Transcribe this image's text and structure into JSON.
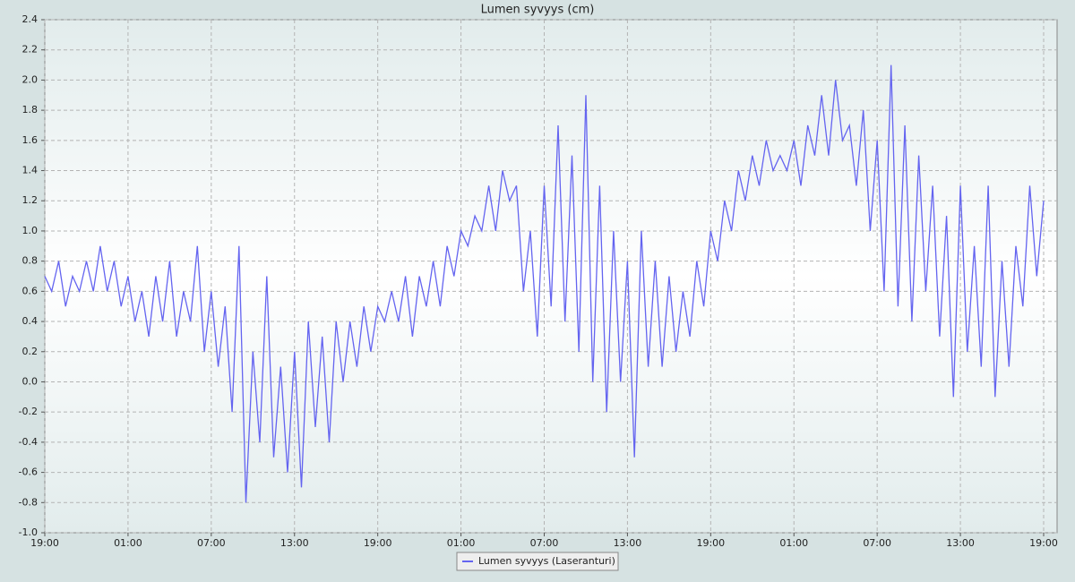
{
  "chart_data": {
    "type": "line",
    "title": "Lumen syvyys (cm)",
    "categories": [
      "19:00",
      null,
      null,
      null,
      null,
      null,
      null,
      null,
      null,
      null,
      null,
      null,
      "01:00",
      null,
      null,
      null,
      null,
      null,
      null,
      null,
      null,
      null,
      null,
      null,
      "07:00",
      null,
      null,
      null,
      null,
      null,
      null,
      null,
      null,
      null,
      null,
      null,
      "13:00",
      null,
      null,
      null,
      null,
      null,
      null,
      null,
      null,
      null,
      null,
      null,
      "19:00",
      null,
      null,
      null,
      null,
      null,
      null,
      null,
      null,
      null,
      null,
      null,
      "01:00",
      null,
      null,
      null,
      null,
      null,
      null,
      null,
      null,
      null,
      null,
      null,
      "07:00",
      null,
      null,
      null,
      null,
      null,
      null,
      null,
      null,
      null,
      null,
      null,
      "13:00",
      null,
      null,
      null,
      null,
      null,
      null,
      null,
      null,
      null,
      null,
      null,
      "19:00",
      null,
      null,
      null,
      null,
      null,
      null,
      null,
      null,
      null,
      null,
      null,
      "01:00",
      null,
      null,
      null,
      null,
      null,
      null,
      null,
      null,
      null,
      null,
      null,
      "07:00",
      null,
      null,
      null,
      null,
      null,
      null,
      null,
      null,
      null,
      null,
      null,
      "13:00",
      null,
      null,
      null,
      null,
      null,
      null,
      null,
      null,
      null,
      null,
      null,
      "19:00"
    ],
    "series": [
      {
        "name": "Lumen syvyys (Laseranturi)",
        "color": "#6464f0",
        "values": [
          0.7,
          0.6,
          0.8,
          0.5,
          0.7,
          0.6,
          0.8,
          0.6,
          0.9,
          0.6,
          0.8,
          0.5,
          0.7,
          0.4,
          0.6,
          0.3,
          0.7,
          0.4,
          0.8,
          0.3,
          0.6,
          0.4,
          0.9,
          0.2,
          0.6,
          0.1,
          0.5,
          -0.2,
          0.9,
          -0.8,
          0.2,
          -0.4,
          0.7,
          -0.5,
          0.1,
          -0.6,
          0.2,
          -0.7,
          0.4,
          -0.3,
          0.3,
          -0.4,
          0.4,
          0.0,
          0.4,
          0.1,
          0.5,
          0.2,
          0.5,
          0.4,
          0.6,
          0.4,
          0.7,
          0.3,
          0.7,
          0.5,
          0.8,
          0.5,
          0.9,
          0.7,
          1.0,
          0.9,
          1.1,
          1.0,
          1.3,
          1.0,
          1.4,
          1.2,
          1.3,
          0.6,
          1.0,
          0.3,
          1.3,
          0.5,
          1.7,
          0.4,
          1.5,
          0.2,
          1.9,
          0.0,
          1.3,
          -0.2,
          1.0,
          0.0,
          0.8,
          -0.5,
          1.0,
          0.1,
          0.8,
          0.1,
          0.7,
          0.2,
          0.6,
          0.3,
          0.8,
          0.5,
          1.0,
          0.8,
          1.2,
          1.0,
          1.4,
          1.2,
          1.5,
          1.3,
          1.6,
          1.4,
          1.5,
          1.4,
          1.6,
          1.3,
          1.7,
          1.5,
          1.9,
          1.5,
          2.0,
          1.6,
          1.7,
          1.3,
          1.8,
          1.0,
          1.6,
          0.6,
          2.1,
          0.5,
          1.7,
          0.4,
          1.5,
          0.6,
          1.3,
          0.3,
          1.1,
          -0.1,
          1.3,
          0.2,
          0.9,
          0.1,
          1.3,
          -0.1,
          0.8,
          0.1,
          0.9,
          0.5,
          1.3,
          0.7,
          1.2
        ]
      }
    ],
    "ylim": [
      -1.0,
      2.4
    ],
    "yticks": [
      {
        "value": -1.0,
        "label": "-1.0"
      },
      -0.8,
      -0.6,
      -0.4,
      -0.2,
      {
        "value": 0,
        "label": "0.0"
      },
      0.2,
      0.4,
      0.6,
      0.8,
      {
        "value": 1,
        "label": "1.0"
      },
      1.2,
      1.4,
      1.6,
      1.8,
      {
        "value": 2,
        "label": "2.0"
      },
      2.2,
      2.4
    ],
    "grid": true,
    "legend": "bottom"
  }
}
